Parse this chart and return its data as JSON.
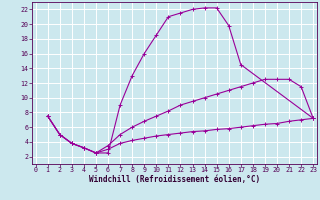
{
  "xlabel": "Windchill (Refroidissement éolien,°C)",
  "bg_color": "#cce8ee",
  "line_color": "#990099",
  "grid_color": "#ffffff",
  "series": [
    {
      "x": [
        1,
        2,
        3,
        4,
        5,
        6,
        7,
        8,
        9,
        10,
        11,
        12,
        13,
        14,
        15,
        16,
        17,
        23
      ],
      "y": [
        7.5,
        5.0,
        3.8,
        3.2,
        2.5,
        2.5,
        9.0,
        13.0,
        16.0,
        18.5,
        21.0,
        21.5,
        22.0,
        22.2,
        22.2,
        19.8,
        14.5,
        7.2
      ]
    },
    {
      "x": [
        1,
        2,
        3,
        4,
        5,
        6,
        7,
        8,
        9,
        10,
        11,
        12,
        13,
        14,
        15,
        16,
        17,
        18,
        19,
        20,
        21,
        22,
        23
      ],
      "y": [
        7.5,
        5.0,
        3.8,
        3.2,
        2.5,
        3.5,
        5.0,
        6.0,
        6.8,
        7.5,
        8.2,
        9.0,
        9.5,
        10.0,
        10.5,
        11.0,
        11.5,
        12.0,
        12.5,
        12.5,
        12.5,
        11.5,
        7.2
      ]
    },
    {
      "x": [
        1,
        2,
        3,
        4,
        5,
        6,
        7,
        8,
        9,
        10,
        11,
        12,
        13,
        14,
        15,
        16,
        17,
        18,
        19,
        20,
        21,
        22,
        23
      ],
      "y": [
        7.5,
        5.0,
        3.8,
        3.2,
        2.5,
        3.0,
        3.8,
        4.2,
        4.5,
        4.8,
        5.0,
        5.2,
        5.4,
        5.5,
        5.7,
        5.8,
        6.0,
        6.2,
        6.4,
        6.5,
        6.8,
        7.0,
        7.2
      ]
    }
  ],
  "xlim": [
    -0.3,
    23.3
  ],
  "ylim": [
    1.0,
    23.0
  ],
  "xticks": [
    0,
    1,
    2,
    3,
    4,
    5,
    6,
    7,
    8,
    9,
    10,
    11,
    12,
    13,
    14,
    15,
    16,
    17,
    18,
    19,
    20,
    21,
    22,
    23
  ],
  "yticks": [
    2,
    4,
    6,
    8,
    10,
    12,
    14,
    16,
    18,
    20,
    22
  ],
  "tick_fontsize": 4.8,
  "xlabel_fontsize": 5.5
}
